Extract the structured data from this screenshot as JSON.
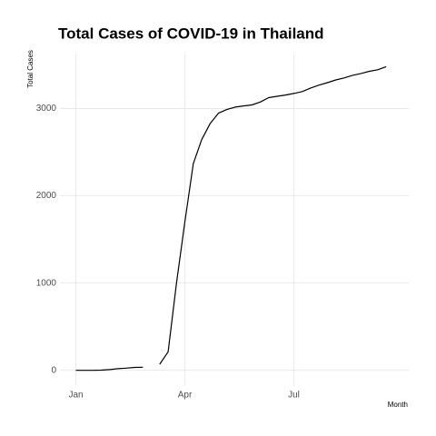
{
  "chart_data": {
    "type": "line",
    "title": "Total Cases of COVID-19 in Thailand",
    "x_label": "Month",
    "y_label": "Total Cases",
    "categories": [
      "Jan",
      null,
      null,
      null,
      null,
      null,
      null,
      null,
      null,
      null,
      null,
      null,
      null,
      "Apr",
      null,
      null,
      null,
      null,
      null,
      null,
      null,
      null,
      null,
      null,
      null,
      null,
      "Jul",
      null,
      null,
      null,
      null,
      null,
      null,
      null,
      null,
      null,
      null,
      null
    ],
    "series": [
      {
        "name": "Total Cases",
        "color": "#000000",
        "values": [
          0,
          0,
          0,
          2,
          8,
          19,
          25,
          33,
          35,
          null,
          70,
          212,
          1000,
          1700,
          2369,
          2643,
          2826,
          2947,
          2989,
          3017,
          3031,
          3042,
          3076,
          3125,
          3141,
          3156,
          3173,
          3195,
          3236,
          3269,
          3297,
          3328,
          3351,
          3382,
          3402,
          3427,
          3445,
          3480
        ]
      }
    ],
    "ylim": [
      -180,
      3620
    ],
    "yticks": [
      0,
      1000,
      2000,
      3000
    ],
    "grid": true
  }
}
